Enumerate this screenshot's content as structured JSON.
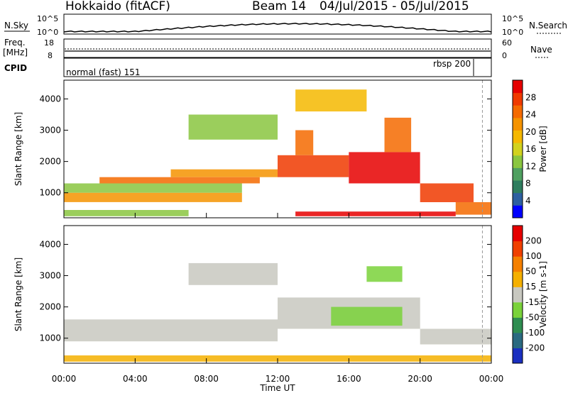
{
  "header": {
    "site": "Hokkaido (fitACF)",
    "beam": "Beam 14",
    "date_range": "04/Jul/2015 - 05/Jul/2015"
  },
  "status_panels": {
    "nsky_label": "N.Sky",
    "nsky_ticks": [
      "10^5",
      "10^0"
    ],
    "nsearch_label": "N.Search",
    "nsearch_ticks": [
      "10^5",
      "10^0"
    ],
    "freq_label_1": "Freq.",
    "freq_label_2": "[MHz]",
    "freq_ticks": [
      "18",
      "8"
    ],
    "nave_label": "Nave",
    "nave_ticks": [
      "60",
      "0"
    ],
    "cpid_label": "CPID",
    "cpid_mode_1": "normal (fast) 151",
    "cpid_mode_2": "rbsp 200"
  },
  "chart_data": [
    {
      "type": "heatmap",
      "name": "power",
      "ylabel": "Slant Range [km]",
      "ylim": [
        200,
        4600
      ],
      "yticks": [
        "1000",
        "2000",
        "3000",
        "4000"
      ],
      "colorbar_label": "Power [dB]",
      "colorbar_ticks": [
        "28",
        "24",
        "20",
        "16",
        "12",
        "8",
        "4"
      ],
      "colorscale": [
        "#0000ff",
        "#2d5fa0",
        "#2e7d5e",
        "#4fa060",
        "#8ac63f",
        "#d2d21e",
        "#f5b800",
        "#f59300",
        "#f56a00",
        "#f03a00",
        "#e60000"
      ],
      "bands": [
        {
          "start": 0,
          "end": 10,
          "r0": 700,
          "r1": 1000,
          "fill": "#f59300"
        },
        {
          "start": 0,
          "end": 10,
          "r0": 1000,
          "r1": 1300,
          "fill": "#8ac63f"
        },
        {
          "start": 2,
          "end": 11,
          "r0": 1300,
          "r1": 1500,
          "fill": "#f56a00"
        },
        {
          "start": 6,
          "end": 12,
          "r0": 1500,
          "r1": 1750,
          "fill": "#f59300"
        },
        {
          "start": 12,
          "end": 16,
          "r0": 1500,
          "r1": 2200,
          "fill": "#f03a00"
        },
        {
          "start": 13,
          "end": 14,
          "r0": 2200,
          "r1": 3000,
          "fill": "#f56a00"
        },
        {
          "start": 16,
          "end": 20,
          "r0": 1300,
          "r1": 2300,
          "fill": "#e60000"
        },
        {
          "start": 18,
          "end": 19.5,
          "r0": 2300,
          "r1": 3400,
          "fill": "#f56a00"
        },
        {
          "start": 20,
          "end": 23,
          "r0": 700,
          "r1": 1300,
          "fill": "#f03a00"
        },
        {
          "start": 22,
          "end": 24,
          "r0": 300,
          "r1": 700,
          "fill": "#f56a00"
        },
        {
          "start": 0,
          "end": 7,
          "r0": 250,
          "r1": 450,
          "fill": "#8ac63f"
        },
        {
          "start": 13,
          "end": 22,
          "r0": 250,
          "r1": 400,
          "fill": "#e60000"
        },
        {
          "start": 7,
          "end": 12,
          "r0": 2700,
          "r1": 3500,
          "fill": "#8ac63f"
        },
        {
          "start": 13,
          "end": 17,
          "r0": 3600,
          "r1": 4300,
          "fill": "#f5b800"
        }
      ]
    },
    {
      "type": "heatmap",
      "name": "velocity",
      "ylabel": "Slant Range [km]",
      "ylim": [
        200,
        4600
      ],
      "yticks": [
        "1000",
        "2000",
        "3000",
        "4000"
      ],
      "colorbar_label": "Velocity [m s-1]",
      "colorbar_ticks": [
        "200",
        "100",
        "50",
        "15",
        "-15",
        "-50",
        "-100",
        "-200"
      ],
      "colorscale": [
        "#1a2fc0",
        "#2a6a80",
        "#2e8d50",
        "#7ad23a",
        "#c8c8c0",
        "#f5b000",
        "#f58000",
        "#f04000",
        "#e60000"
      ],
      "bands": [
        {
          "start": 0,
          "end": 12,
          "r0": 900,
          "r1": 1600,
          "fill": "#c8c8c0"
        },
        {
          "start": 12,
          "end": 20,
          "r0": 1300,
          "r1": 2300,
          "fill": "#c8c8c0"
        },
        {
          "start": 15,
          "end": 19,
          "r0": 1400,
          "r1": 2000,
          "fill": "#7ad23a"
        },
        {
          "start": 20,
          "end": 24,
          "r0": 800,
          "r1": 1300,
          "fill": "#c8c8c0"
        },
        {
          "start": 0,
          "end": 24,
          "r0": 250,
          "r1": 450,
          "fill": "#f5b000"
        },
        {
          "start": 7,
          "end": 12,
          "r0": 2700,
          "r1": 3400,
          "fill": "#c8c8c0"
        },
        {
          "start": 17,
          "end": 19,
          "r0": 2800,
          "r1": 3300,
          "fill": "#7ad23a"
        }
      ]
    }
  ],
  "x_axis": {
    "label": "Time UT",
    "ticks": [
      "00:00",
      "04:00",
      "08:00",
      "12:00",
      "16:00",
      "20:00",
      "00:00"
    ],
    "xlim": [
      0,
      24
    ]
  }
}
